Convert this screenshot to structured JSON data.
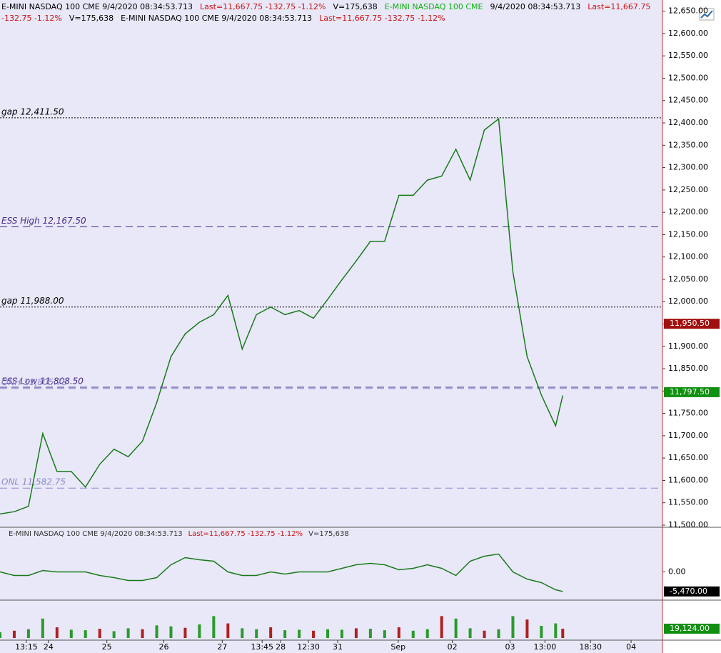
{
  "header": {
    "items": [
      {
        "text": "E-MINI NASDAQ 100  CME  9/4/2020  08:34:53.713",
        "color": "#000000"
      },
      {
        "text": "Last=11,667.75  -132.75  -1.12%",
        "color": "#d01010"
      },
      {
        "text": "V=175,638",
        "color": "#000000"
      },
      {
        "text": "E-MINI NASDAQ 100  CME",
        "color": "#10b010"
      },
      {
        "text": "9/4/2020  08:34:53.713",
        "color": "#000000"
      },
      {
        "text": "Last=11,667.75  -132.75  -1.12%",
        "color": "#d01010"
      },
      {
        "text": "V=175,638",
        "color": "#000000"
      },
      {
        "text": "E-MINI NASDAQ 100  CME  9/4/2020  08:34:53.713",
        "color": "#000000"
      },
      {
        "text": "Last=11,667.75  -132.75  -1.12%",
        "color": "#d01010"
      }
    ]
  },
  "chart_data": [
    {
      "type": "line",
      "name": "price",
      "x": [
        0,
        4,
        8,
        12,
        16,
        20,
        24,
        28,
        32,
        36,
        40,
        44,
        48,
        52,
        56,
        60,
        64,
        68,
        72,
        76,
        80,
        84,
        88,
        92,
        96,
        100,
        104,
        108,
        112,
        116,
        120,
        124,
        128,
        132,
        136,
        140,
        144,
        148,
        152,
        156,
        158
      ],
      "series": [
        {
          "color": "#1a7a1a",
          "values": [
            11525,
            11530,
            11542,
            11705,
            11620,
            11620,
            11585,
            11636,
            11670,
            11653,
            11688,
            11774,
            11877,
            11928,
            11954,
            11971,
            12014,
            11894,
            11971,
            11988,
            11971,
            11980,
            11963,
            12005,
            12049,
            12091,
            12135,
            12135,
            12238,
            12238,
            12272,
            12281,
            12341,
            12272,
            12384,
            12409,
            12066,
            11877,
            11791,
            11722,
            11790
          ]
        }
      ],
      "xlim": [
        0,
        186
      ],
      "ylim": [
        11500,
        12675
      ],
      "yticks": [
        {
          "value": 11500,
          "label": "11,500.00"
        },
        {
          "value": 11550,
          "label": "11,550.00"
        },
        {
          "value": 11600,
          "label": "11,600.00"
        },
        {
          "value": 11650,
          "label": "11,650.00"
        },
        {
          "value": 11700,
          "label": "11,700.00"
        },
        {
          "value": 11750,
          "label": "11,750.00"
        },
        {
          "value": 11800,
          "label": "11,800.00"
        },
        {
          "value": 11850,
          "label": "11,850.00"
        },
        {
          "value": 11900,
          "label": "11,900.00"
        },
        {
          "value": 11950,
          "label": "11,950.00"
        },
        {
          "value": 12000,
          "label": "12,000.00"
        },
        {
          "value": 12050,
          "label": "12,050.00"
        },
        {
          "value": 12100,
          "label": "12,100.00"
        },
        {
          "value": 12150,
          "label": "12,150.00"
        },
        {
          "value": 12200,
          "label": "12,200.00"
        },
        {
          "value": 12250,
          "label": "12,250.00"
        },
        {
          "value": 12300,
          "label": "12,300.00"
        },
        {
          "value": 12350,
          "label": "12,350.00"
        },
        {
          "value": 12400,
          "label": "12,400.00"
        },
        {
          "value": 12450,
          "label": "12,450.00"
        },
        {
          "value": 12500,
          "label": "12,500.00"
        },
        {
          "value": 12550,
          "label": "12,550.00"
        },
        {
          "value": 12600,
          "label": "12,600.00"
        },
        {
          "value": 12650,
          "label": "12,650.00"
        }
      ],
      "levels": [
        {
          "label": "gap 12,411.50",
          "value": 12411.5,
          "style": "dotted",
          "color": "#000000"
        },
        {
          "label": "ESS High 12,167.50",
          "value": 12167.5,
          "style": "dashed",
          "color": "#4b2a8a"
        },
        {
          "label": "gap 11,988.00",
          "value": 11988,
          "style": "dotted",
          "color": "#000000"
        },
        {
          "label": "ESS Low 11,808.50",
          "value": 11808.5,
          "style": "dashed",
          "color": "#4b2a8a"
        },
        {
          "label": "ONH 11,805.75",
          "value": 11805.75,
          "style": "dashed",
          "color": "#8a8ad0"
        },
        {
          "label": "ONL 11,582.75",
          "value": 11582.75,
          "style": "dashed",
          "color": "#8a8ad0"
        }
      ],
      "markers": [
        {
          "label": "11,950.50",
          "value": 11950.5,
          "color": "#a01010"
        },
        {
          "label": "11,797.50",
          "value": 11797.5,
          "color": "#109010"
        }
      ]
    },
    {
      "type": "line",
      "name": "oscillator",
      "title": "E-MINI NASDAQ 100  CME  9/4/2020  08:34:53.713",
      "title_last": "Last=11,667.75  -132.75  -1.12%",
      "title_volume": "V=175,638",
      "x": [
        0,
        4,
        8,
        12,
        16,
        20,
        24,
        28,
        32,
        36,
        40,
        44,
        48,
        52,
        56,
        60,
        64,
        68,
        72,
        76,
        80,
        84,
        88,
        92,
        96,
        100,
        104,
        108,
        112,
        116,
        120,
        124,
        128,
        132,
        136,
        140,
        144,
        148,
        152,
        156,
        158
      ],
      "series": [
        {
          "color": "#1a7a1a",
          "values": [
            0,
            -1000,
            -1000,
            400,
            0,
            0,
            0,
            -1000,
            -1600,
            -2400,
            -2400,
            -1600,
            2000,
            4000,
            3400,
            3000,
            0,
            -1000,
            -1000,
            0,
            -600,
            0,
            0,
            0,
            1000,
            2000,
            2400,
            2000,
            600,
            1000,
            2000,
            1000,
            -1000,
            3000,
            4400,
            5000,
            0,
            -2000,
            -3000,
            -5000,
            -5470
          ]
        }
      ],
      "xlim": [
        0,
        186
      ],
      "ylim": [
        -7500,
        11700
      ],
      "yticks": [
        {
          "value": 0,
          "label": "0.00"
        }
      ],
      "markers": [
        {
          "label": "-5,470.00",
          "value": -5470,
          "color": "#000000"
        }
      ]
    },
    {
      "type": "bar",
      "name": "volume",
      "x": [
        0,
        4,
        8,
        12,
        16,
        20,
        24,
        28,
        32,
        36,
        40,
        44,
        48,
        52,
        56,
        60,
        64,
        68,
        72,
        76,
        80,
        84,
        88,
        92,
        96,
        100,
        104,
        108,
        112,
        116,
        120,
        124,
        128,
        132,
        136,
        140,
        144,
        148,
        152,
        156,
        158
      ],
      "series": [
        {
          "color": "#2a9a2a",
          "values": [
            12000,
            15000,
            18000,
            40000,
            22000,
            17000,
            16000,
            19000,
            14000,
            20000,
            18000,
            26000,
            24000,
            21000,
            28000,
            45000,
            30000,
            20000,
            18000,
            22000,
            16000,
            17000,
            15000,
            18000,
            17000,
            20000,
            19000,
            16000,
            22000,
            15000,
            18000,
            45000,
            40000,
            20000,
            15000,
            18000,
            45000,
            38000,
            25000,
            30000,
            19124
          ]
        }
      ],
      "xlim": [
        0,
        186
      ],
      "ylim": [
        0,
        73500
      ],
      "markers": [
        {
          "label": "19,124.00",
          "value": 19124,
          "color": "#109010"
        }
      ],
      "xticks": [
        {
          "value": 7.4,
          "label": "13:15"
        },
        {
          "value": 13.6,
          "label": "24"
        },
        {
          "value": 30,
          "label": "25"
        },
        {
          "value": 46,
          "label": "26"
        },
        {
          "value": 62.4,
          "label": "27"
        },
        {
          "value": 73.6,
          "label": "13:45"
        },
        {
          "value": 78.8,
          "label": "28"
        },
        {
          "value": 86.6,
          "label": "12:30"
        },
        {
          "value": 94.8,
          "label": "31"
        },
        {
          "value": 111.8,
          "label": "Sep"
        },
        {
          "value": 127,
          "label": "02"
        },
        {
          "value": 143.2,
          "label": "03"
        },
        {
          "value": 153,
          "label": "13:00"
        },
        {
          "value": 165.8,
          "label": "18:30"
        },
        {
          "value": 177.2,
          "label": "04"
        }
      ]
    }
  ]
}
